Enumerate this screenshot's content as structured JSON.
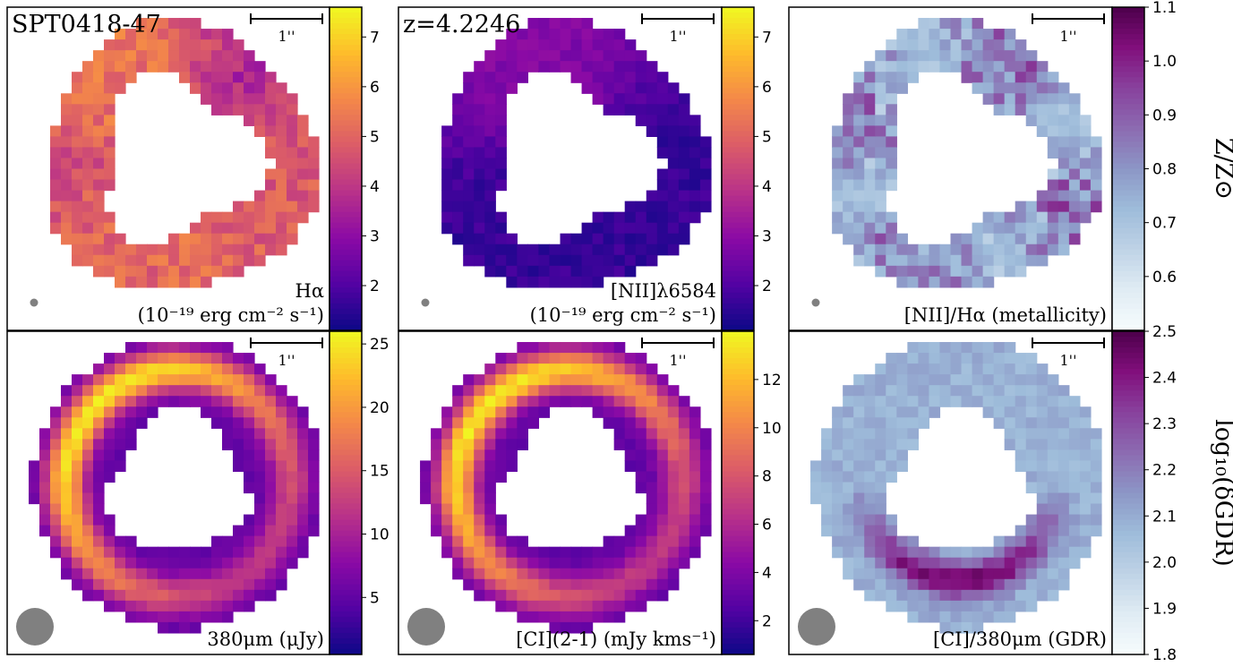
{
  "chart_data": [
    {
      "type": "heatmap",
      "map": "Halpha",
      "corner_text": "SPT0418-47",
      "label_lines": [
        "Hα",
        "(10⁻¹⁹ erg cm⁻² s⁻¹)"
      ],
      "scalebar_label": "1''",
      "colormap": "plasma",
      "colorbar_range": [
        1.1,
        7.6
      ],
      "colorbar_ticks": [
        "2",
        "3",
        "4",
        "5",
        "6",
        "7"
      ],
      "colorbar_label": "",
      "beam": "small"
    },
    {
      "type": "heatmap",
      "map": "NII",
      "corner_text": "z=4.2246",
      "label_lines": [
        "[NII]λ6584",
        "(10⁻¹⁹ erg cm⁻² s⁻¹)"
      ],
      "scalebar_label": "1''",
      "colormap": "plasma",
      "colorbar_range": [
        1.1,
        7.6
      ],
      "colorbar_ticks": [
        "2",
        "3",
        "4",
        "5",
        "6",
        "7"
      ],
      "colorbar_label": "",
      "beam": "small"
    },
    {
      "type": "heatmap",
      "map": "metallicity",
      "corner_text": "",
      "label_lines": [
        "[NII]/Hα (metallicity)"
      ],
      "scalebar_label": "1''",
      "colormap": "BuPu",
      "colorbar_range": [
        0.5,
        1.1
      ],
      "colorbar_ticks": [
        "0.6",
        "0.7",
        "0.8",
        "0.9",
        "1.0",
        "1.1"
      ],
      "colorbar_label": "Z/Z⊙",
      "beam": "small"
    },
    {
      "type": "heatmap",
      "map": "dust380",
      "corner_text": "",
      "label_lines": [
        "380μm (μJy)"
      ],
      "scalebar_label": "1''",
      "colormap": "plasma",
      "colorbar_range": [
        0.5,
        26
      ],
      "colorbar_ticks": [
        "5",
        "10",
        "15",
        "20",
        "25"
      ],
      "colorbar_label": "",
      "beam": "large"
    },
    {
      "type": "heatmap",
      "map": "CI21",
      "corner_text": "",
      "label_lines": [
        "[CI](2-1) (mJy kms⁻¹)"
      ],
      "scalebar_label": "1''",
      "colormap": "plasma",
      "colorbar_range": [
        0.6,
        14
      ],
      "colorbar_ticks": [
        "2",
        "4",
        "6",
        "8",
        "10",
        "12"
      ],
      "colorbar_label": "",
      "beam": "large"
    },
    {
      "type": "heatmap",
      "map": "GDR",
      "corner_text": "",
      "label_lines": [
        "[CI]/380μm (GDR)"
      ],
      "scalebar_label": "1''",
      "colormap": "BuPu",
      "colorbar_range": [
        1.8,
        2.5
      ],
      "colorbar_ticks": [
        "1.8",
        "1.9",
        "2.0",
        "2.1",
        "2.2",
        "2.3",
        "2.4",
        "2.5"
      ],
      "colorbar_label": "log₁₀(δGDR)",
      "beam": "large"
    }
  ]
}
